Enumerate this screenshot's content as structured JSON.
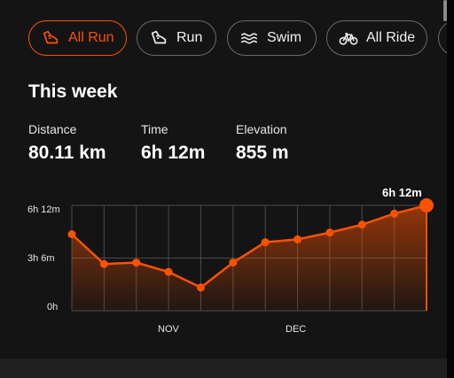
{
  "filters": [
    {
      "label": "All Run",
      "icon": "shoe-icon",
      "active": true
    },
    {
      "label": "Run",
      "icon": "shoe-icon",
      "active": false
    },
    {
      "label": "Swim",
      "icon": "waves-icon",
      "active": false
    },
    {
      "label": "All Ride",
      "icon": "bicycle-icon",
      "active": false
    }
  ],
  "summary": {
    "title": "This week",
    "stats": [
      {
        "label": "Distance",
        "value": "80.11 km"
      },
      {
        "label": "Time",
        "value": "6h 12m"
      },
      {
        "label": "Elevation",
        "value": "855 m"
      }
    ]
  },
  "chart_data": {
    "type": "area",
    "y_tick_labels": [
      "6h 12m",
      "3h 6m",
      "0h"
    ],
    "x_tick_labels": [
      "NOV",
      "DEC"
    ],
    "ylim_minutes": [
      0,
      372
    ],
    "peak_label": "6h 12m",
    "series": [
      {
        "values_minutes": [
          270,
          165,
          170,
          137,
          82,
          170,
          242,
          252,
          276,
          304,
          343,
          372
        ]
      }
    ],
    "accent_color": "#fc5200"
  }
}
